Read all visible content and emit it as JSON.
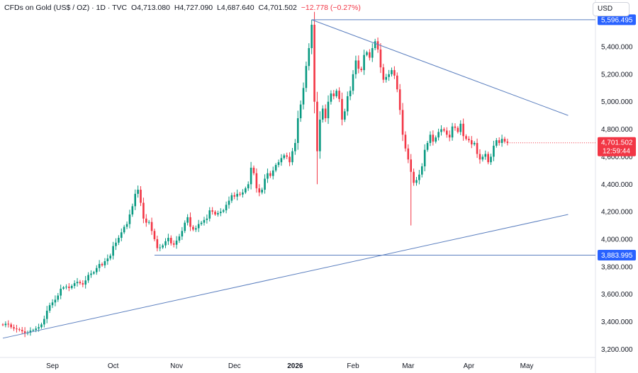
{
  "legend": {
    "symbol": "CFDs on Gold (US$ / OZ) · 1D · TVC",
    "open": "O4,713.080",
    "high": "H4,727.090",
    "low": "L4,687.640",
    "close": "C4,701.502",
    "change": "−12.778 (−0.27%)"
  },
  "currency_label": "USD",
  "price_tags": {
    "resistance": "5,596.495",
    "support": "3,883.995",
    "last_price": "4,701.502",
    "countdown": "12:59:44"
  },
  "colors": {
    "up": "#089981",
    "down": "#f23645",
    "trendline": "#5b7fbf",
    "tag": "#2962ff"
  },
  "chart_data": {
    "type": "candlestick",
    "title": "CFDs on Gold (US$ / OZ)",
    "ylim": [
      3140,
      5740
    ],
    "y_ticks": [
      3200,
      3400,
      3600,
      3800,
      4000,
      4200,
      4400,
      4600,
      4800,
      5000,
      5200,
      5400
    ],
    "y_tick_labels": [
      "3,200.000",
      "3,400.000",
      "3,600.000",
      "3,800.000",
      "4,000.000",
      "4,200.000",
      "4,400.000",
      "4,600.000",
      "4,800.000",
      "5,000.000",
      "5,200.000",
      "5,400.000"
    ],
    "x_tick_labels": [
      {
        "label": "Sep",
        "index": 18
      },
      {
        "label": "Oct",
        "index": 40
      },
      {
        "label": "Nov",
        "index": 63
      },
      {
        "label": "Dec",
        "index": 84
      },
      {
        "label": "2026",
        "index": 106
      },
      {
        "label": "Feb",
        "index": 127
      },
      {
        "label": "Mar",
        "index": 147
      },
      {
        "label": "Apr",
        "index": 169
      },
      {
        "label": "May",
        "index": 190
      }
    ],
    "closes": [
      3375,
      3385,
      3380,
      3360,
      3350,
      3345,
      3340,
      3330,
      3315,
      3320,
      3335,
      3340,
      3350,
      3360,
      3380,
      3420,
      3480,
      3520,
      3540,
      3560,
      3590,
      3640,
      3650,
      3655,
      3645,
      3660,
      3680,
      3690,
      3680,
      3670,
      3700,
      3740,
      3750,
      3760,
      3790,
      3820,
      3810,
      3840,
      3860,
      3880,
      3950,
      3975,
      4010,
      4050,
      4090,
      4110,
      4180,
      4240,
      4330,
      4360,
      4265,
      4150,
      4120,
      4125,
      4060,
      4000,
      3935,
      3940,
      3955,
      3985,
      4010,
      3970,
      3960,
      3990,
      4020,
      4060,
      4120,
      4160,
      4090,
      4070,
      4080,
      4110,
      4120,
      4140,
      4150,
      4210,
      4200,
      4180,
      4190,
      4200,
      4210,
      4250,
      4280,
      4320,
      4310,
      4330,
      4325,
      4340,
      4370,
      4400,
      4520,
      4480,
      4370,
      4340,
      4360,
      4440,
      4480,
      4460,
      4500,
      4540,
      4560,
      4590,
      4610,
      4600,
      4560,
      4640,
      4700,
      4880,
      4980,
      5100,
      5260,
      5390,
      5560,
      5000,
      4640,
      4870,
      4950,
      4880,
      5000,
      5060,
      5040,
      5080,
      5020,
      4870,
      4930,
      5040,
      5080,
      5200,
      5300,
      5240,
      5230,
      5340,
      5360,
      5320,
      5390,
      5440,
      5380,
      5250,
      5160,
      5180,
      5200,
      5230,
      5190,
      5090,
      4940,
      4760,
      4660,
      4580,
      4490,
      4410,
      4430,
      4470,
      4530,
      4650,
      4700,
      4760,
      4710,
      4740,
      4780,
      4800,
      4790,
      4760,
      4740,
      4820,
      4810,
      4780,
      4840,
      4750,
      4730,
      4720,
      4690,
      4700,
      4620,
      4580,
      4600,
      4620,
      4560,
      4600,
      4680,
      4720,
      4700,
      4730,
      4710,
      4701.5
    ],
    "trendlines": [
      {
        "name": "resistance",
        "from": [
          112,
          5596.495
        ],
        "to": [
          205,
          4900
        ]
      },
      {
        "name": "support",
        "from": [
          0,
          3280
        ],
        "to": [
          205,
          4180
        ]
      }
    ],
    "horizontal_levels": [
      {
        "name": "peak",
        "value": 5596.495,
        "from_index": 112
      },
      {
        "name": "low",
        "value": 3883.995,
        "from_index": 55
      }
    ]
  }
}
